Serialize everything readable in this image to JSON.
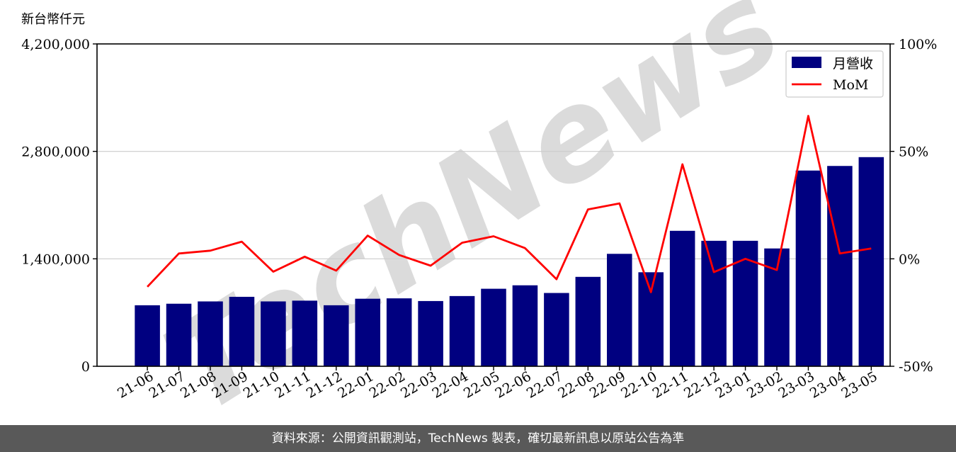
{
  "chart_data": {
    "type": "bar",
    "categories": [
      "21-06",
      "21-07",
      "21-08",
      "21-09",
      "21-10",
      "21-11",
      "21-12",
      "22-01",
      "22-02",
      "22-03",
      "22-04",
      "22-05",
      "22-06",
      "22-07",
      "22-08",
      "22-09",
      "22-10",
      "22-11",
      "22-12",
      "23-01",
      "23-02",
      "23-03",
      "23-04",
      "23-05"
    ],
    "series": [
      {
        "name": "月營收",
        "type": "bar",
        "axis": "left",
        "color": "#000080",
        "values": [
          795000,
          815000,
          845000,
          905000,
          845000,
          855000,
          795000,
          880000,
          885000,
          850000,
          915000,
          1010000,
          1055000,
          955000,
          1165000,
          1465000,
          1225000,
          1765000,
          1635000,
          1635000,
          1535000,
          2550000,
          2610000,
          2725000
        ]
      },
      {
        "name": "MoM",
        "type": "line",
        "axis": "right",
        "color": "#ff0000",
        "values": [
          -13,
          2.5,
          3.8,
          8,
          -6,
          1,
          -5.5,
          10.8,
          1.8,
          -3.2,
          7.5,
          10.5,
          5,
          -9.5,
          23,
          25.8,
          -15.5,
          44,
          -6.2,
          0,
          -5.2,
          66.5,
          2.5,
          4.8
        ]
      }
    ],
    "ylabel": "新台幣仟元",
    "ylim": [
      0,
      4200000
    ],
    "yticks": [
      "0",
      "1,400,000",
      "2,800,000",
      "4,200,000"
    ],
    "y2lim": [
      -50,
      100
    ],
    "y2ticks": [
      "-50%",
      "0%",
      "50%",
      "100%"
    ],
    "grid": true,
    "legend": "top-right"
  },
  "watermark": "TechNews",
  "footer": "資料來源：公開資訊觀測站，TechNews 製表，確切最新訊息以原站公告為準"
}
